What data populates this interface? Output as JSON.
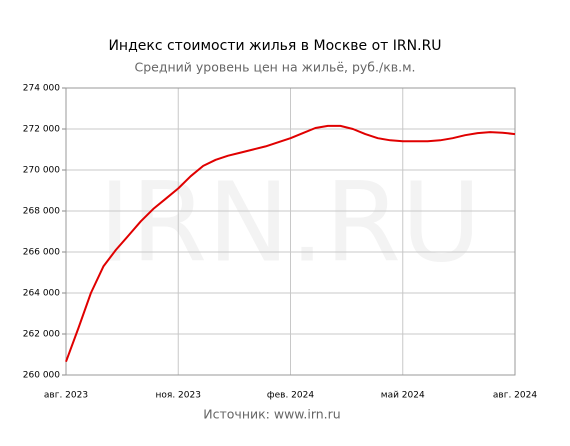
{
  "chart_data": {
    "type": "line",
    "title": "Индекс стоимости жилья в Москве от IRN.RU",
    "subtitle": "Средний уровень цен на жильё, руб./кв.м.",
    "watermark": "IRN.RU",
    "source": "Источник: www.irn.ru",
    "categories": [
      "авг. 2023",
      null,
      null,
      null,
      null,
      null,
      null,
      null,
      null,
      "ноя. 2023",
      null,
      null,
      null,
      null,
      null,
      null,
      null,
      null,
      "фев. 2024",
      null,
      null,
      null,
      null,
      null,
      null,
      null,
      null,
      "май 2024",
      null,
      null,
      null,
      null,
      null,
      null,
      null,
      null,
      "авг. 2024"
    ],
    "series": [
      {
        "color": "#e00000",
        "values": [
          260650,
          262300,
          264000,
          265300,
          266100,
          266800,
          267500,
          268100,
          268600,
          269100,
          269700,
          270200,
          270500,
          270700,
          270850,
          271000,
          271150,
          271350,
          271550,
          271800,
          272050,
          272150,
          272150,
          272000,
          271750,
          271550,
          271450,
          271400,
          271400,
          271400,
          271450,
          271550,
          271700,
          271800,
          271850,
          271820,
          271750
        ]
      }
    ],
    "ylim": [
      260000,
      274000
    ],
    "yticks": [
      {
        "value": 260000,
        "label": "260 000"
      },
      {
        "value": 262000,
        "label": "262 000"
      },
      {
        "value": 264000,
        "label": "264 000"
      },
      {
        "value": 266000,
        "label": "266 000"
      },
      {
        "value": 268000,
        "label": "268 000"
      },
      {
        "value": 270000,
        "label": "270 000"
      },
      {
        "value": 272000,
        "label": "272 000"
      },
      {
        "value": 274000,
        "label": "274 000"
      }
    ],
    "grid": true
  }
}
